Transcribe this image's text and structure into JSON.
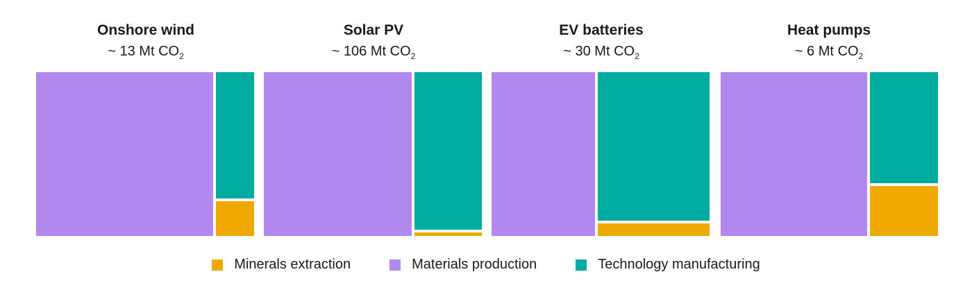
{
  "chart_data": {
    "type": "treemap",
    "unit_prefix": "~",
    "unit_mid": " Mt CO",
    "unit_sub": "2",
    "categories": [
      "Minerals extraction",
      "Materials production",
      "Technology manufacturing"
    ],
    "colors": {
      "Minerals extraction": "#f0a900",
      "Materials production": "#b088ee",
      "Technology manufacturing": "#00ab9f"
    },
    "panels": [
      {
        "title": "Onshore wind",
        "total": "13",
        "shares": {
          "Materials production": 0.82,
          "Technology manufacturing": 0.14,
          "Minerals extraction": 0.04
        }
      },
      {
        "title": "Solar PV",
        "total": "106",
        "shares": {
          "Materials production": 0.685,
          "Technology manufacturing": 0.305,
          "Minerals extraction": 0.01
        }
      },
      {
        "title": "EV batteries",
        "total": "30",
        "shares": {
          "Materials production": 0.48,
          "Technology manufacturing": 0.475,
          "Minerals extraction": 0.045
        }
      },
      {
        "title": "Heat pumps",
        "total": "6",
        "shares": {
          "Materials production": 0.68,
          "Technology manufacturing": 0.22,
          "Minerals extraction": 0.1
        }
      }
    ]
  }
}
